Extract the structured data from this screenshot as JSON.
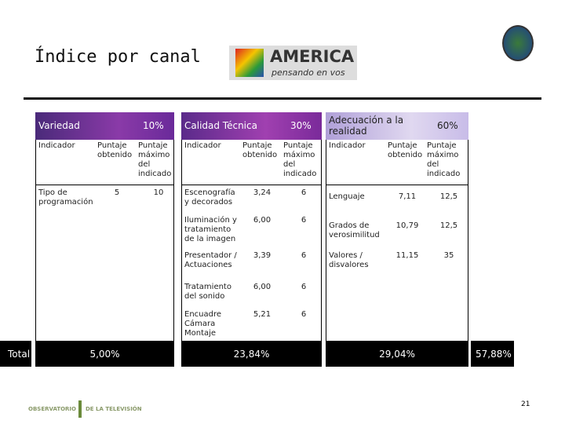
{
  "header": {
    "title": "Índice por canal",
    "logo_name": "AMERICA",
    "logo_tagline": "pensando en vos"
  },
  "panels": [
    {
      "name": "Variedad",
      "weight": "10%",
      "columns": [
        "Indicador",
        "Puntaje obtenido",
        "Puntaje máximo del indicado"
      ],
      "rows": [
        [
          "Tipo de programación",
          "5",
          "10"
        ]
      ],
      "total": "5,00%"
    },
    {
      "name": "Calidad Técnica",
      "weight": "30%",
      "columns": [
        "Indicador",
        "Puntaje obtenido",
        "Puntaje máximo del indicado"
      ],
      "rows": [
        [
          "Escenografía y decorados",
          "3,24",
          "6"
        ],
        [
          "Iluminación y tratamiento de la imagen",
          "6,00",
          "6"
        ],
        [
          "Presentador / Actuaciones",
          "3,39",
          "6"
        ],
        [
          "Tratamiento del sonido",
          "6,00",
          "6"
        ],
        [
          "Encuadre Cámara Montaje",
          "5,21",
          "6"
        ]
      ],
      "total": "23,84%"
    },
    {
      "name": "Adecuación a la realidad",
      "weight": "60%",
      "columns": [
        "Indicador",
        "Puntaje obtenido",
        "Puntaje máximo del indicado"
      ],
      "rows": [
        [
          "Lenguaje",
          "7,11",
          "12,5"
        ],
        [
          "Grados de verosimilitud",
          "10,79",
          "12,5"
        ],
        [
          "Valores / disvalores",
          "11,15",
          "35"
        ]
      ],
      "total": "29,04%"
    }
  ],
  "total_label": "Total",
  "grand_total": "57,88%",
  "footer": {
    "org_left": "OBSERVATORIO",
    "org_right": "DE LA TELEVISIÓN",
    "page": "21"
  }
}
